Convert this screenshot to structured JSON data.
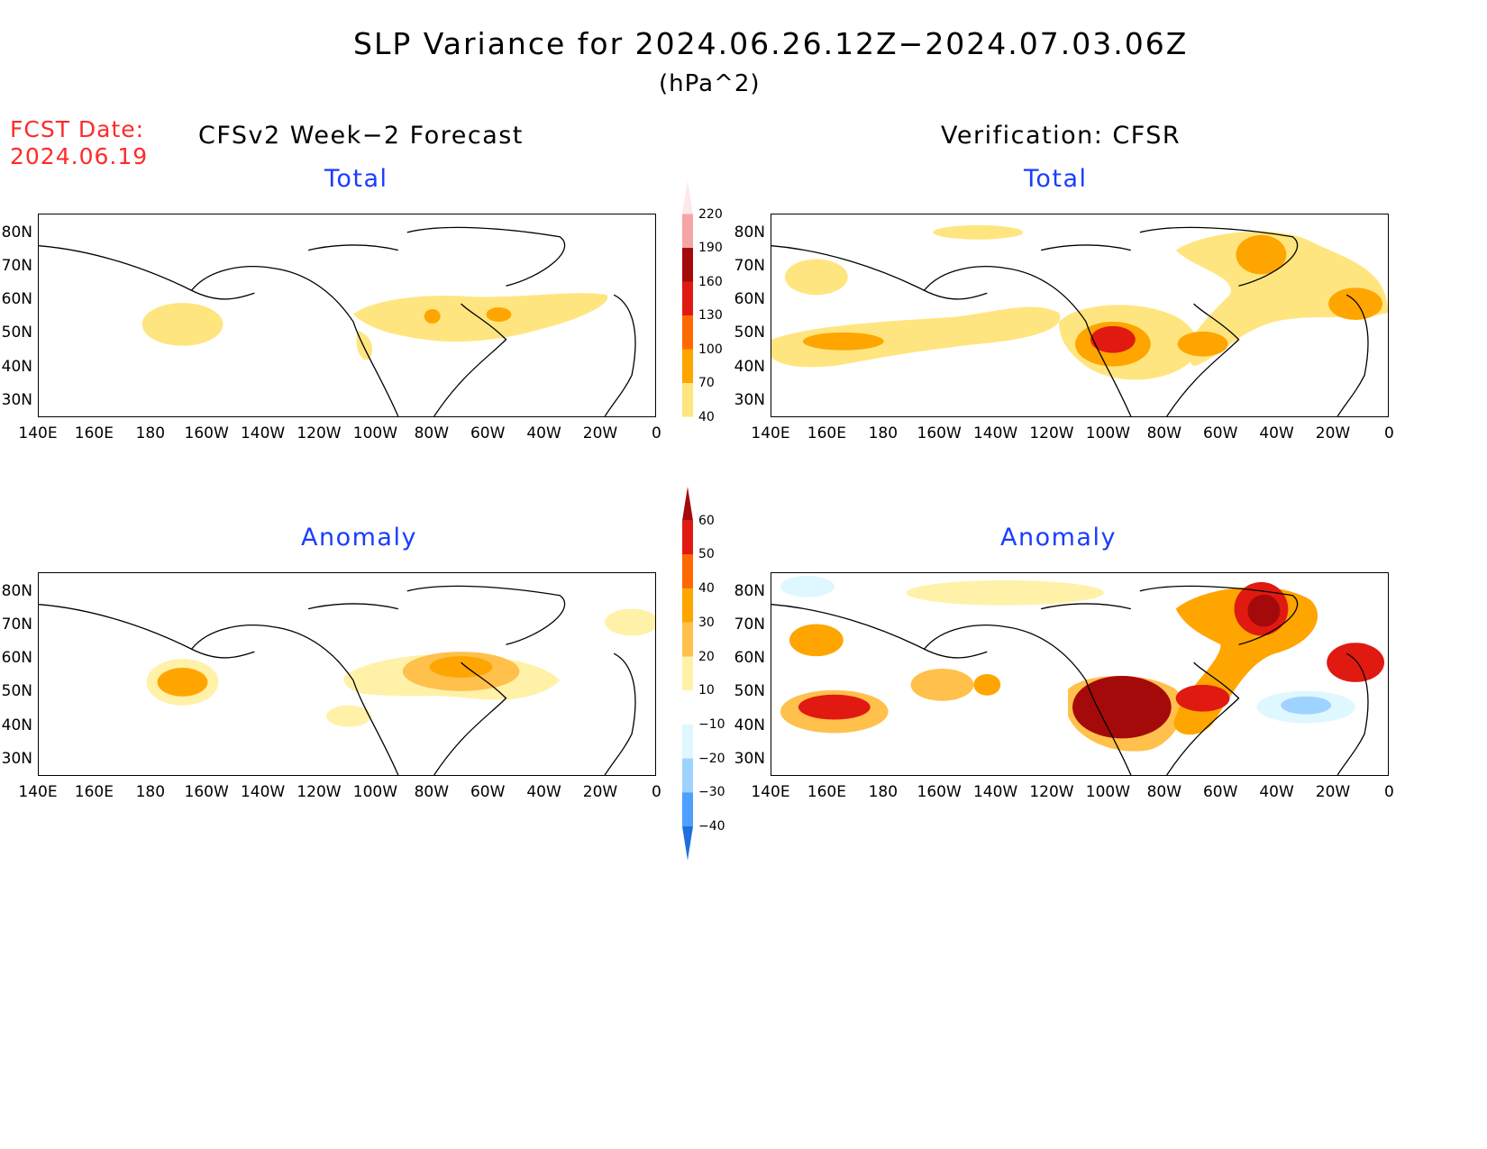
{
  "title": "SLP Variance for 2024.06.26.12Z−2024.07.03.06Z",
  "units": "(hPa^2)",
  "fcst": {
    "label": "FCST Date:",
    "date": "2024.06.19"
  },
  "columns": {
    "left": "CFSv2 Week−2 Forecast",
    "right": "Verification: CFSR"
  },
  "panels": {
    "top_title": "Total",
    "bottom_title": "Anomaly"
  },
  "lat_labels": [
    "80N",
    "70N",
    "60N",
    "50N",
    "40N",
    "30N"
  ],
  "lon_labels": [
    "140E",
    "160E",
    "180",
    "160W",
    "140W",
    "120W",
    "100W",
    "80W",
    "60W",
    "40W",
    "20W",
    "0"
  ],
  "colorbar_total": {
    "levels": [
      "220",
      "190",
      "160",
      "130",
      "100",
      "70",
      "40"
    ],
    "colors": [
      "#ffe8ea",
      "#f4a6a6",
      "#a50a0a",
      "#e01a10",
      "#ff6a00",
      "#ffa500",
      "#ffe57f"
    ]
  },
  "colorbar_anomaly": {
    "levels": [
      "60",
      "50",
      "40",
      "30",
      "20",
      "10",
      "−10",
      "−20",
      "−30",
      "−40"
    ],
    "colors": [
      "#a50a0a",
      "#e01a10",
      "#ff6a00",
      "#ffa500",
      "#ffc04c",
      "#fff1a8",
      "#ffffff",
      "#dff7ff",
      "#9fd3ff",
      "#4da0ff",
      "#1f6ee0"
    ]
  }
}
